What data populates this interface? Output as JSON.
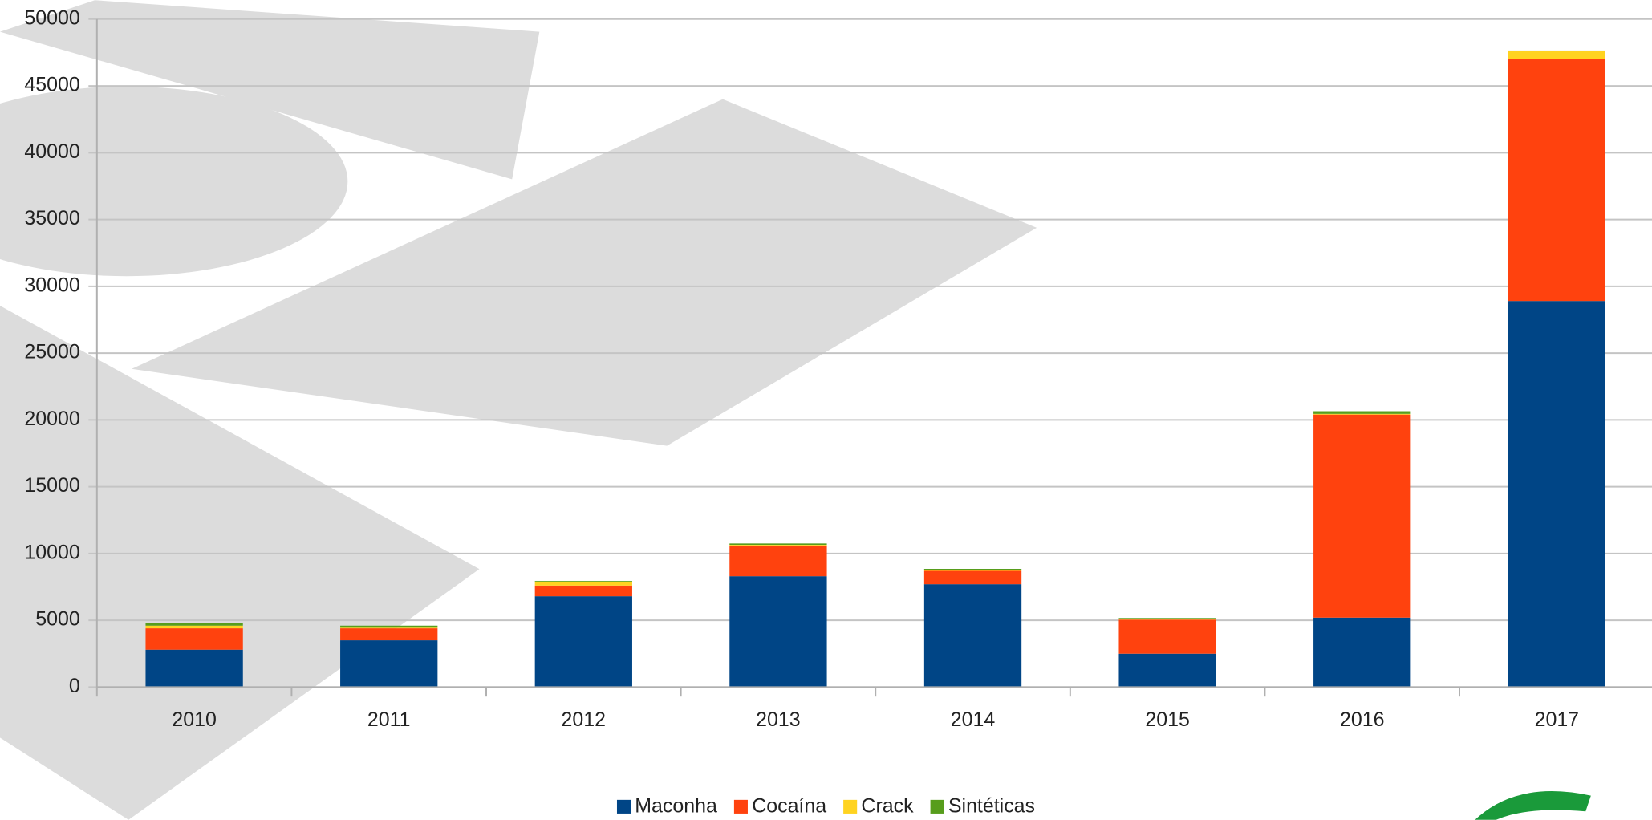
{
  "chart_data": {
    "type": "stacked_bar",
    "categories": [
      "2010",
      "2011",
      "2012",
      "2013",
      "2014",
      "2015",
      "2016",
      "2017"
    ],
    "series": [
      {
        "name": "Maconha",
        "color": "#004586",
        "values": [
          2800,
          3500,
          6800,
          8300,
          7700,
          2500,
          5200,
          28900
        ]
      },
      {
        "name": "Cocaína",
        "color": "#ff420e",
        "values": [
          1600,
          900,
          800,
          2300,
          1000,
          2550,
          15200,
          18100
        ]
      },
      {
        "name": "Crack",
        "color": "#ffd320",
        "values": [
          200,
          50,
          300,
          50,
          50,
          20,
          50,
          600
        ]
      },
      {
        "name": "Sintéticas",
        "color": "#579d1c",
        "values": [
          200,
          150,
          50,
          100,
          100,
          100,
          200,
          50
        ]
      }
    ],
    "ylim": [
      0,
      50000
    ],
    "yticks": [
      0,
      5000,
      10000,
      15000,
      20000,
      25000,
      30000,
      35000,
      40000,
      45000,
      50000
    ],
    "grid": true,
    "legend": "bottom"
  }
}
